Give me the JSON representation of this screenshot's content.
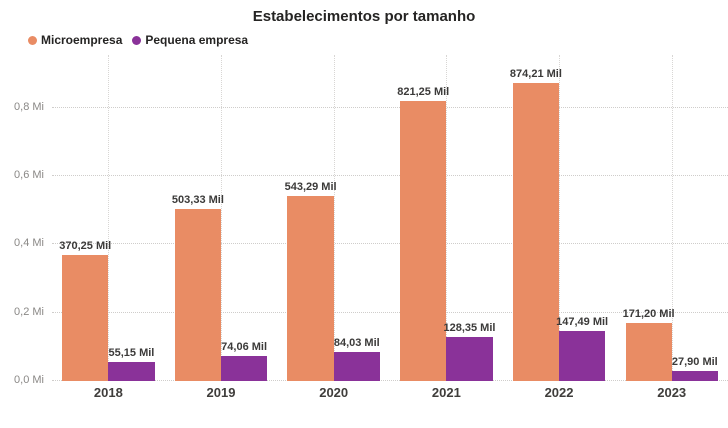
{
  "title": "Estabelecimentos por tamanho",
  "colors": {
    "microempresa": "#E98C64",
    "pequena_empresa": "#8A3299",
    "title_text": "#252423",
    "data_label_text": "#3B3A39",
    "axis_tick_text": "#8A8886",
    "gridline": "#CFCDCB"
  },
  "chart_data": {
    "type": "bar",
    "title": "Estabelecimentos por tamanho",
    "categories": [
      "2018",
      "2019",
      "2020",
      "2021",
      "2022",
      "2023"
    ],
    "series": [
      {
        "name": "Microempresa",
        "color": "#E98C64",
        "values_mil": [
          370.25,
          503.33,
          543.29,
          821.25,
          874.21,
          171.2
        ],
        "labels": [
          "370,25 Mil",
          "503,33 Mil",
          "543,29 Mil",
          "821,25 Mil",
          "874,21 Mil",
          "171,20 Mil"
        ]
      },
      {
        "name": "Pequena empresa",
        "color": "#8A3299",
        "values_mil": [
          55.15,
          74.06,
          84.03,
          128.35,
          147.49,
          27.9
        ],
        "labels": [
          "55,15 Mil",
          "74,06 Mil",
          "84,03 Mil",
          "128,35 Mil",
          "147,49 Mil",
          "27,90 Mil"
        ]
      }
    ],
    "y_axis": {
      "unit": "Mi",
      "ticks": [
        "0,0 Mi",
        "0,2 Mi",
        "0,4 Mi",
        "0,6 Mi",
        "0,8 Mi"
      ],
      "tick_values_mil": [
        0,
        200,
        400,
        600,
        800
      ],
      "render_max_mil": 955
    },
    "ylim": [
      0,
      0.955
    ],
    "grid": true,
    "legend_position": "top-left",
    "data_labels": true
  }
}
